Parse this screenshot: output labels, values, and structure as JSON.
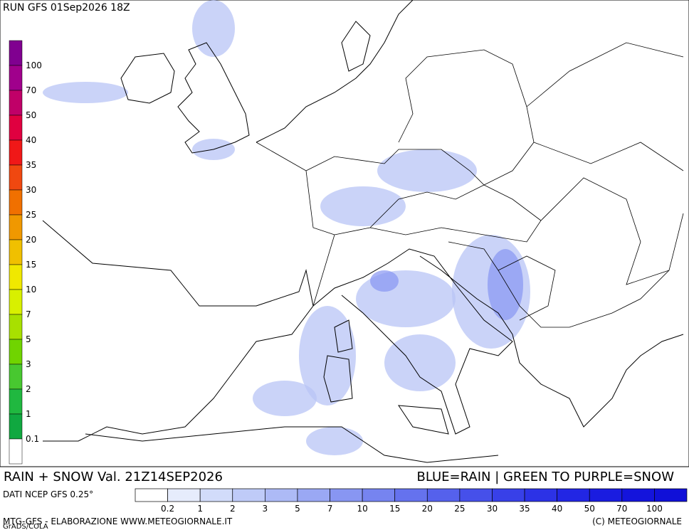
{
  "header": {
    "run": "RUN  GFS  01Sep2026  18Z"
  },
  "snow_scale": {
    "labels": [
      100,
      70,
      50,
      40,
      35,
      30,
      25,
      20,
      15,
      10,
      7,
      5,
      3,
      2,
      1,
      0.1
    ],
    "colors": [
      "#800090",
      "#a0008c",
      "#c00068",
      "#e00040",
      "#f01818",
      "#f04810",
      "#f07000",
      "#f09800",
      "#f0c000",
      "#f0e800",
      "#d8f000",
      "#a8e000",
      "#70d400",
      "#48c830",
      "#20b840",
      "#10a840",
      "#ffffff"
    ]
  },
  "footer": {
    "title": "RAIN + SNOW Val. 21Z14SEP2026",
    "legend_note": "BLUE=RAIN | GREEN TO PURPLE=SNOW",
    "source": "DATI NCEP GFS 0.25°",
    "rain_scale": {
      "labels": [
        0.2,
        1,
        2,
        3,
        5,
        7,
        10,
        15,
        20,
        25,
        30,
        35,
        40,
        50,
        70,
        100
      ],
      "colors": [
        "#ffffff",
        "#e6ecfc",
        "#d2dcfa",
        "#bfcbf8",
        "#adbaf6",
        "#9aa8f4",
        "#8896f2",
        "#7684f0",
        "#6572ee",
        "#5561ec",
        "#4650ea",
        "#3840e8",
        "#2c32e6",
        "#2226e4",
        "#1a1ce0",
        "#1414dc",
        "#1010d8"
      ]
    },
    "credit": "MTG-GFS - ELABORAZIONE WWW.METEOGIORNALE.IT",
    "grads": "GrADS/COLA",
    "copyright": "(C) METEOGIORNALE"
  }
}
